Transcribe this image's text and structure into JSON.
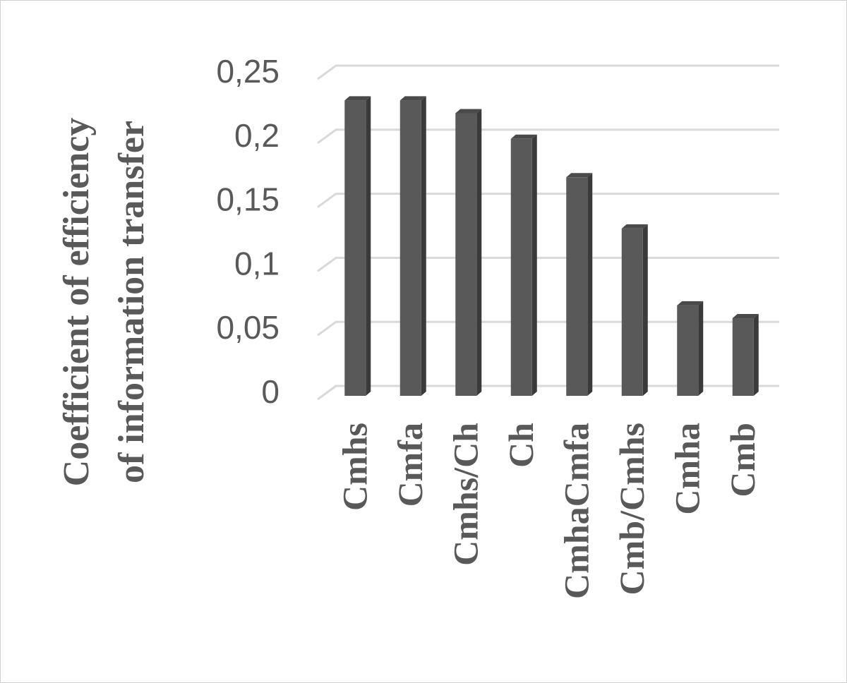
{
  "chart_data": {
    "type": "bar",
    "style": "3d-column",
    "ylabel_lines": [
      "Coefficient of efficiency",
      "of information transfer"
    ],
    "xlabel": "",
    "categories": [
      "Cmhs",
      "Cmfa",
      "Cmhs/Ch",
      "Ch",
      "CmhaCmfa",
      "Cmb/Cmhs",
      "Cmha",
      "Cmb"
    ],
    "values": [
      0.23,
      0.23,
      0.22,
      0.2,
      0.17,
      0.13,
      0.07,
      0.06
    ],
    "ylim": [
      0,
      0.25
    ],
    "yticks": [
      0,
      0.05,
      0.1,
      0.15,
      0.2,
      0.25
    ],
    "ytick_labels": [
      "0",
      "0,05",
      "0,1",
      "0,15",
      "0,2",
      "0,25"
    ],
    "grid": true,
    "legend": "none",
    "colors": {
      "bar_front": "#595959",
      "bar_side": "#3a3a3a",
      "bar_top": "#4a4a4a",
      "grid": "#d9d9d9",
      "text": "#595959"
    }
  }
}
